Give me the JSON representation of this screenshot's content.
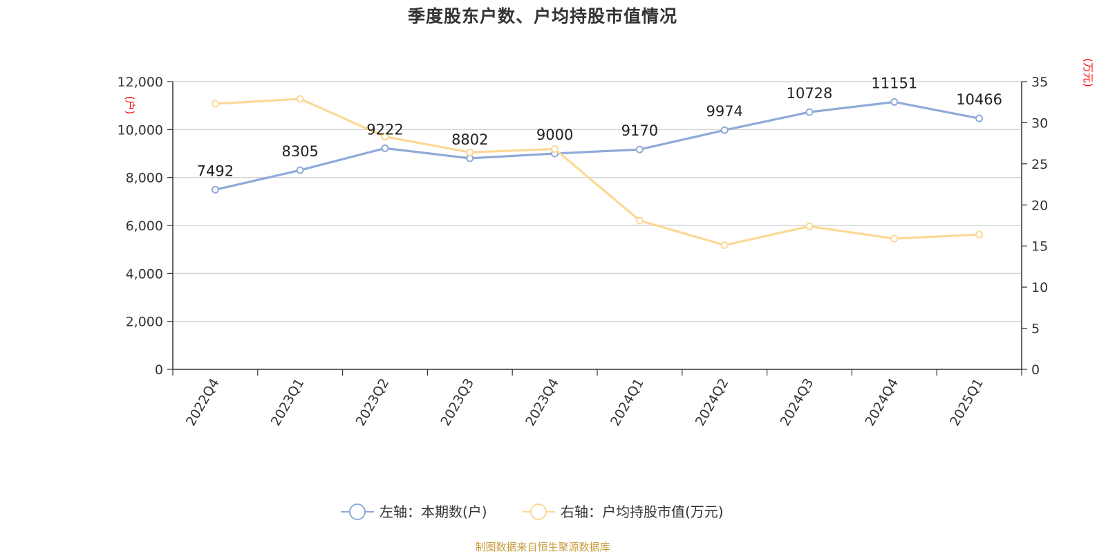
{
  "title": "季度股东户数、户均持股市值情况",
  "source": "制图数据来自恒生聚源数据库",
  "chart_data": {
    "type": "line",
    "title": "季度股东户数、户均持股市值情况",
    "categories": [
      "2022Q4",
      "2023Q1",
      "2023Q2",
      "2023Q3",
      "2023Q4",
      "2024Q1",
      "2024Q2",
      "2024Q3",
      "2024Q4",
      "2025Q1"
    ],
    "left_axis": {
      "unit_label": "(户)",
      "range": [
        0,
        12000
      ],
      "ticks": [
        0,
        2000,
        4000,
        6000,
        8000,
        10000,
        12000
      ],
      "tick_labels": [
        "0",
        "2,000",
        "4,000",
        "6,000",
        "8,000",
        "10,000",
        "12,000"
      ]
    },
    "right_axis": {
      "unit_label": "(万元)",
      "range": [
        0,
        35
      ],
      "ticks": [
        0,
        5,
        10,
        15,
        20,
        25,
        30,
        35
      ],
      "tick_labels": [
        "0",
        "5",
        "10",
        "15",
        "20",
        "25",
        "30",
        "35"
      ]
    },
    "grid": true,
    "legend_position": "bottom",
    "series": [
      {
        "name": "左轴：本期数(户)",
        "axis": "left",
        "color": "#8eaad8",
        "values": [
          7492,
          8305,
          9222,
          8802,
          9000,
          9170,
          9974,
          10728,
          11151,
          10466
        ],
        "labels": [
          "7492",
          "8305",
          "9222",
          "8802",
          "9000",
          "9170",
          "9974",
          "10728",
          "11151",
          "10466"
        ]
      },
      {
        "name": "右轴：户均持股市值(万元)",
        "axis": "right",
        "color": "#fcd896",
        "values": [
          32.3,
          32.9,
          28.3,
          26.4,
          26.8,
          18.1,
          15.1,
          17.4,
          15.9,
          16.4
        ]
      }
    ]
  }
}
